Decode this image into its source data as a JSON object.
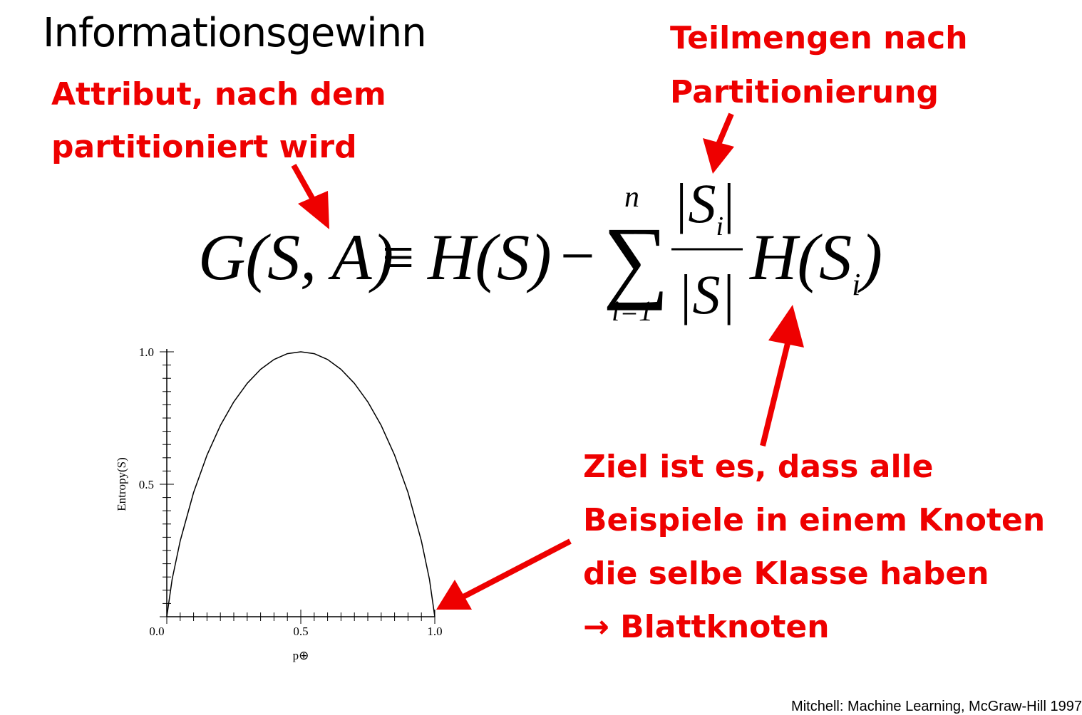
{
  "slide": {
    "title": "Informationsgewinn",
    "annotation_attribute": [
      "Attribut, nach dem",
      "partitioniert wird"
    ],
    "annotation_subsets": [
      "Teilmengen nach",
      "Partitionierung"
    ],
    "annotation_goal": [
      "Ziel ist es, dass alle",
      "Beispiele in einem Knoten",
      "die selbe Klasse haben",
      "→ Blattknoten"
    ],
    "citation": "Mitchell: Machine Learning, McGraw-Hill 1997",
    "formula": {
      "lhs": "G(S, A)",
      "equiv": "≡",
      "h_s": "H(S)",
      "minus": "−",
      "sigma": "∑",
      "upper": "n",
      "lower": "i=1",
      "numerator": "|S",
      "numerator_sub": "i",
      "numerator_close": "|",
      "denominator": "|S|",
      "tail": "H(S",
      "tail_sub": "i",
      "tail_close": ")"
    },
    "colors": {
      "annotation": "#ee0000",
      "text": "#000000"
    }
  },
  "chart_data": {
    "type": "line",
    "xlabel": "p⊕",
    "ylabel": "Entropy(S)",
    "xlim": [
      0.0,
      1.0
    ],
    "ylim": [
      0.0,
      1.0
    ],
    "x_tick_labels": [
      "0.0",
      "0.5",
      "1.0"
    ],
    "y_tick_labels": [
      "0.5",
      "1.0"
    ],
    "series": [
      {
        "x": [
          0.0,
          0.02,
          0.05,
          0.1,
          0.15,
          0.2,
          0.25,
          0.3,
          0.35,
          0.4,
          0.45,
          0.5,
          0.55,
          0.6,
          0.65,
          0.7,
          0.75,
          0.8,
          0.85,
          0.9,
          0.95,
          0.98,
          1.0
        ],
        "y": [
          0.0,
          0.141,
          0.286,
          0.469,
          0.61,
          0.722,
          0.811,
          0.881,
          0.934,
          0.971,
          0.993,
          1.0,
          0.993,
          0.971,
          0.934,
          0.881,
          0.811,
          0.722,
          0.61,
          0.469,
          0.286,
          0.141,
          0.0
        ]
      }
    ]
  }
}
